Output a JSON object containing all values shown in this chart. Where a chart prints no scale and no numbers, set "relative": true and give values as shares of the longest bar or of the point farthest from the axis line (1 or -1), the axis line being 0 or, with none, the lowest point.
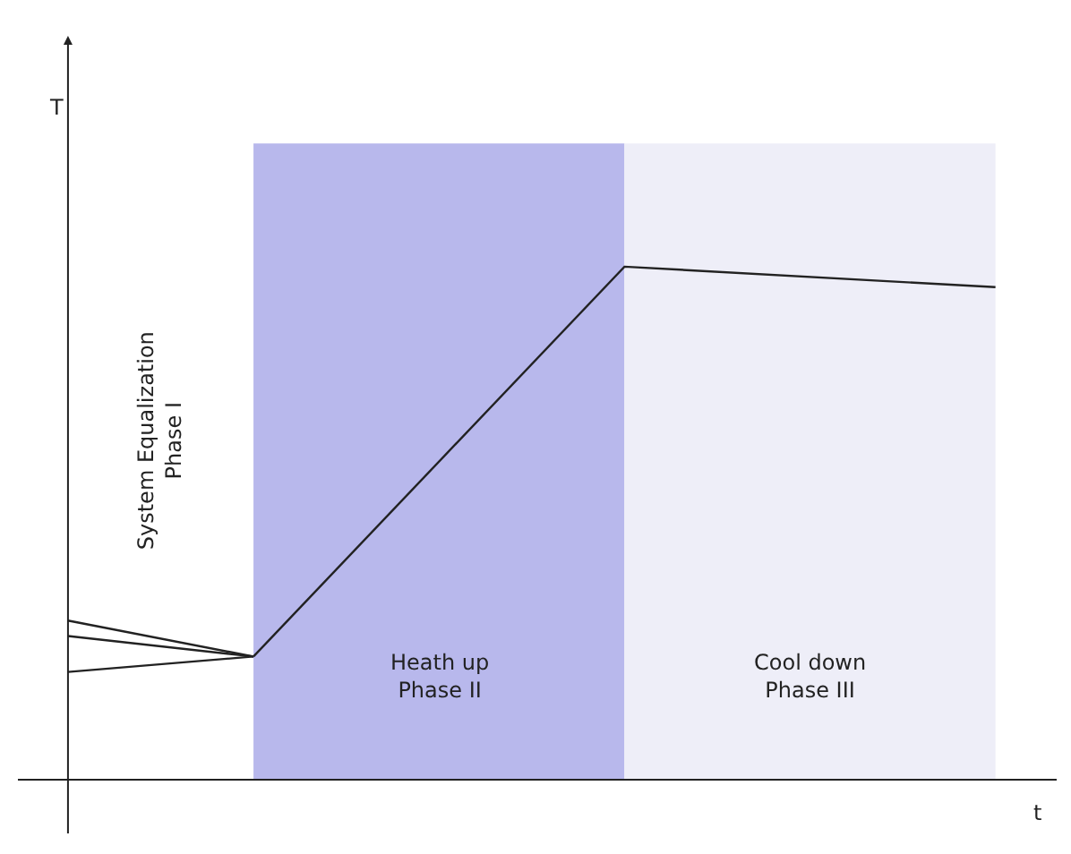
{
  "chart_data": {
    "type": "line",
    "relative": true,
    "grid": false,
    "marker": "none",
    "line_style": "solid",
    "categories": [
      null,
      null,
      null,
      null,
      null,
      null
    ],
    "series": [
      {
        "color": "#222222",
        "values": [
          0.31,
          0.24,
          null,
          null,
          null,
          null
        ]
      },
      {
        "color": "#222222",
        "values": [
          0.28,
          0.24,
          null,
          null,
          null,
          null
        ]
      },
      {
        "color": "#222222",
        "values": [
          0.21,
          0.24,
          null,
          null,
          null,
          null
        ]
      },
      {
        "color": "#222222",
        "values": [
          null,
          0.24,
          null,
          1,
          null,
          0.96
        ]
      }
    ],
    "annotations": [
      "T",
      "System Equalization\nPhase I",
      "Heath up\nPhase II",
      "Cool down\nPhase III",
      "t"
    ]
  }
}
